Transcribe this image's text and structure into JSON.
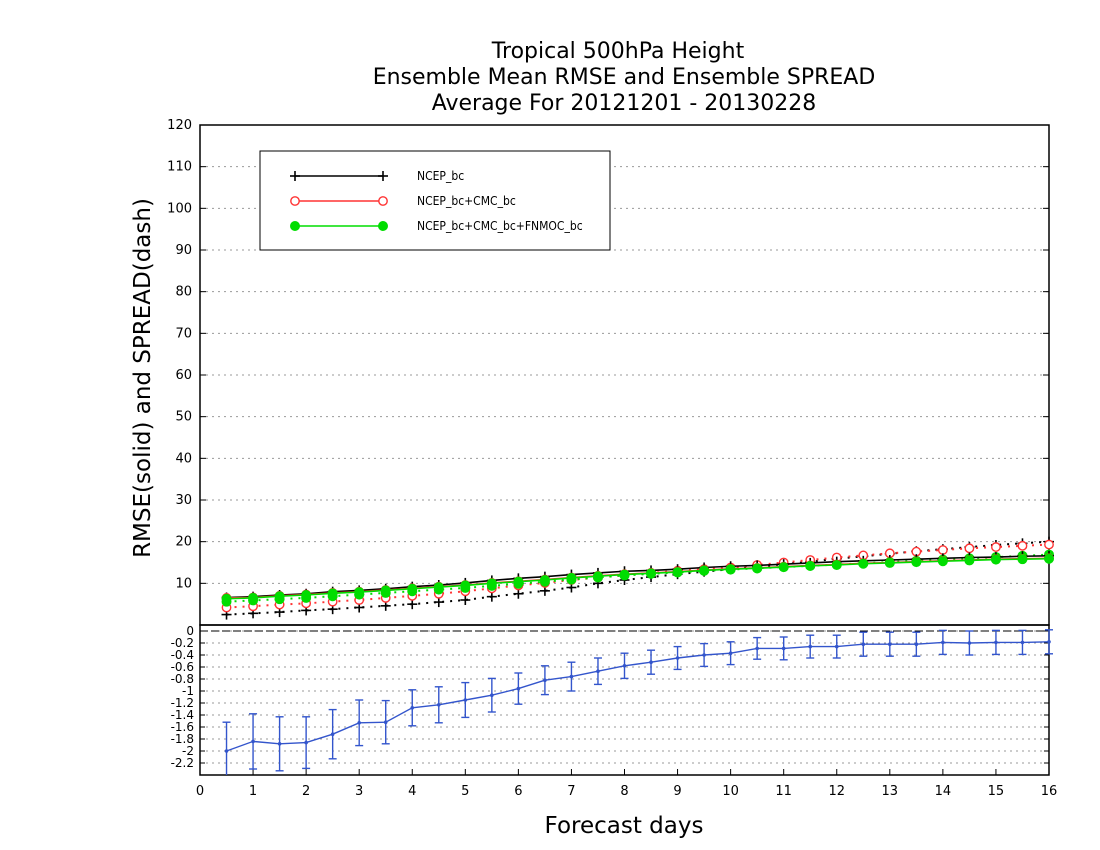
{
  "chart_data": [
    {
      "type": "line",
      "title": [
        "Tropical 500hPa Height",
        "Ensemble Mean RMSE and Ensemble SPREAD",
        "Average For 20121201 - 20130228"
      ],
      "ylabel": "RMSE(solid) and SPREAD(dash)",
      "ylim": [
        0,
        120
      ],
      "yticks": [
        10,
        20,
        30,
        40,
        50,
        60,
        70,
        80,
        90,
        100,
        110,
        120
      ],
      "grid": true,
      "legend_position": "top-left",
      "x": [
        0.5,
        1,
        1.5,
        2,
        2.5,
        3,
        3.5,
        4,
        4.5,
        5,
        5.5,
        6,
        6.5,
        7,
        7.5,
        8,
        8.5,
        9,
        9.5,
        10,
        10.5,
        11,
        11.5,
        12,
        12.5,
        13,
        13.5,
        14,
        14.5,
        15,
        15.5,
        16
      ],
      "series": [
        {
          "name": "NCEP_bc",
          "metric": "RMSE",
          "style": "solid",
          "color": "#000000",
          "marker": "plus",
          "values": [
            6.6,
            6.8,
            7.2,
            7.5,
            8.0,
            8.3,
            8.7,
            9.2,
            9.6,
            10.1,
            10.7,
            11.2,
            11.6,
            12.1,
            12.5,
            12.9,
            13.1,
            13.4,
            13.8,
            14.1,
            14.3,
            14.6,
            14.9,
            15.2,
            15.4,
            15.6,
            15.8,
            16.0,
            16.2,
            16.3,
            16.5,
            16.6
          ]
        },
        {
          "name": "NCEP_bc+CMC_bc",
          "metric": "RMSE",
          "style": "solid",
          "color": "#ff3333",
          "marker": "open-circle",
          "values": [
            6.5,
            6.6,
            7.0,
            7.3,
            7.7,
            8.0,
            8.4,
            8.8,
            9.2,
            9.6,
            10.1,
            10.5,
            10.9,
            11.4,
            11.8,
            12.2,
            12.5,
            12.8,
            13.2,
            13.5,
            13.7,
            14.0,
            14.3,
            14.5,
            14.8,
            15.0,
            15.2,
            15.4,
            15.6,
            15.8,
            15.9,
            16.0
          ]
        },
        {
          "name": "NCEP_bc+CMC_bc+FNMOC_bc",
          "metric": "RMSE",
          "style": "solid",
          "color": "#00dd00",
          "marker": "filled-circle",
          "values": [
            6.3,
            6.5,
            6.9,
            7.2,
            7.6,
            7.9,
            8.3,
            8.7,
            9.1,
            9.5,
            10.0,
            10.4,
            10.8,
            11.3,
            11.7,
            12.1,
            12.4,
            12.7,
            13.1,
            13.4,
            13.6,
            13.9,
            14.2,
            14.4,
            14.7,
            14.9,
            15.1,
            15.3,
            15.5,
            15.7,
            15.8,
            15.9
          ]
        },
        {
          "name": "NCEP_bc",
          "metric": "SPREAD",
          "style": "dash",
          "color": "#000000",
          "marker": "plus",
          "values": [
            2.5,
            2.8,
            3.1,
            3.5,
            3.8,
            4.2,
            4.6,
            5.0,
            5.5,
            6.0,
            6.8,
            7.5,
            8.2,
            9.0,
            10.0,
            10.8,
            11.5,
            12.2,
            12.8,
            13.4,
            14.0,
            14.6,
            15.2,
            15.9,
            16.5,
            17.1,
            17.7,
            18.2,
            18.7,
            19.2,
            19.6,
            20.0
          ]
        },
        {
          "name": "NCEP_bc+CMC_bc",
          "metric": "SPREAD",
          "style": "dash",
          "color": "#ff3333",
          "marker": "open-circle",
          "values": [
            4.2,
            4.5,
            4.9,
            5.2,
            5.6,
            6.0,
            6.5,
            7.0,
            7.5,
            8.1,
            8.8,
            9.5,
            10.1,
            10.8,
            11.4,
            12.0,
            12.5,
            13.0,
            13.4,
            13.8,
            14.4,
            15.0,
            15.6,
            16.2,
            16.7,
            17.2,
            17.6,
            18.0,
            18.4,
            18.7,
            19.0,
            19.3
          ]
        },
        {
          "name": "NCEP_bc+CMC_bc+FNMOC_bc",
          "metric": "SPREAD",
          "style": "dash",
          "color": "#00dd00",
          "marker": "filled-circle",
          "values": [
            5.6,
            5.9,
            6.2,
            6.5,
            6.9,
            7.3,
            7.7,
            8.1,
            8.5,
            8.9,
            9.4,
            9.9,
            10.4,
            10.9,
            11.4,
            11.9,
            12.3,
            12.6,
            13.0,
            13.3,
            13.6,
            13.9,
            14.2,
            14.5,
            14.8,
            15.1,
            15.4,
            15.7,
            16.0,
            16.3,
            16.6,
            16.9
          ]
        }
      ]
    },
    {
      "type": "line",
      "xlabel": "Forecast days",
      "xlim": [
        0,
        16
      ],
      "xticks": [
        0,
        1,
        2,
        3,
        4,
        5,
        6,
        7,
        8,
        9,
        10,
        11,
        12,
        13,
        14,
        15,
        16
      ],
      "ylim": [
        -2.4,
        0.1
      ],
      "yticks": [
        "0",
        "-0.2",
        "-0.4",
        "-0.6",
        "-0.8",
        "-1",
        "-1.2",
        "-1.4",
        "-1.6",
        "-1.8",
        "-2",
        "-2.2"
      ],
      "yticks_values": [
        0,
        -0.2,
        -0.4,
        -0.6,
        -0.8,
        -1,
        -1.2,
        -1.4,
        -1.6,
        -1.8,
        -2,
        -2.2
      ],
      "grid": true,
      "x": [
        0.5,
        1,
        1.5,
        2,
        2.5,
        3,
        3.5,
        4,
        4.5,
        5,
        5.5,
        6,
        6.5,
        7,
        7.5,
        8,
        8.5,
        9,
        9.5,
        10,
        10.5,
        11,
        11.5,
        12,
        12.5,
        13,
        13.5,
        14,
        14.5,
        15,
        15.5,
        16
      ],
      "series": [
        {
          "color": "#3355cc",
          "error_bars": true,
          "values": [
            -2.0,
            -1.84,
            -1.88,
            -1.86,
            -1.72,
            -1.53,
            -1.52,
            -1.28,
            -1.23,
            -1.15,
            -1.07,
            -0.96,
            -0.82,
            -0.76,
            -0.67,
            -0.58,
            -0.52,
            -0.45,
            -0.4,
            -0.37,
            -0.29,
            -0.29,
            -0.26,
            -0.26,
            -0.22,
            -0.22,
            -0.22,
            -0.19,
            -0.2,
            -0.19,
            -0.19,
            -0.18
          ],
          "errors": [
            0.48,
            0.46,
            0.45,
            0.43,
            0.41,
            0.38,
            0.36,
            0.3,
            0.3,
            0.29,
            0.28,
            0.26,
            0.24,
            0.24,
            0.22,
            0.21,
            0.2,
            0.19,
            0.19,
            0.19,
            0.18,
            0.19,
            0.19,
            0.19,
            0.2,
            0.2,
            0.2,
            0.2,
            0.2,
            0.2,
            0.2,
            0.2
          ]
        }
      ]
    }
  ]
}
